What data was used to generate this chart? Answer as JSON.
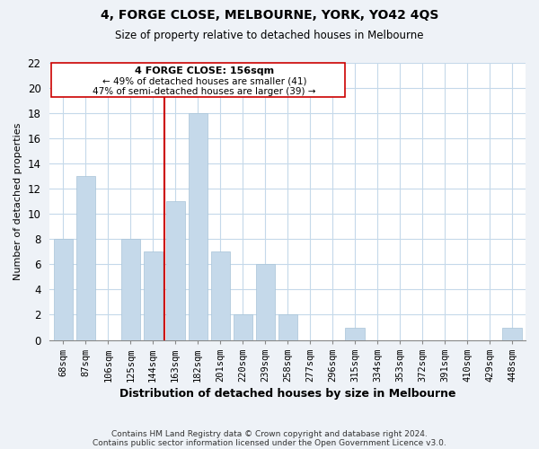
{
  "title": "4, FORGE CLOSE, MELBOURNE, YORK, YO42 4QS",
  "subtitle": "Size of property relative to detached houses in Melbourne",
  "xlabel": "Distribution of detached houses by size in Melbourne",
  "ylabel": "Number of detached properties",
  "bar_color": "#c5d9ea",
  "bar_edge_color": "#a8c4d8",
  "categories": [
    "68sqm",
    "87sqm",
    "106sqm",
    "125sqm",
    "144sqm",
    "163sqm",
    "182sqm",
    "201sqm",
    "220sqm",
    "239sqm",
    "258sqm",
    "277sqm",
    "296sqm",
    "315sqm",
    "334sqm",
    "353sqm",
    "372sqm",
    "391sqm",
    "410sqm",
    "429sqm",
    "448sqm"
  ],
  "values": [
    8,
    13,
    0,
    8,
    7,
    11,
    18,
    7,
    2,
    6,
    2,
    0,
    0,
    1,
    0,
    0,
    0,
    0,
    0,
    0,
    1
  ],
  "vline_index": 5,
  "vline_color": "#cc0000",
  "annotation_title": "4 FORGE CLOSE: 156sqm",
  "annotation_line1": "← 49% of detached houses are smaller (41)",
  "annotation_line2": "47% of semi-detached houses are larger (39) →",
  "ylim": [
    0,
    22
  ],
  "yticks": [
    0,
    2,
    4,
    6,
    8,
    10,
    12,
    14,
    16,
    18,
    20,
    22
  ],
  "footnote1": "Contains HM Land Registry data © Crown copyright and database right 2024.",
  "footnote2": "Contains public sector information licensed under the Open Government Licence v3.0.",
  "bg_color": "#eef2f7",
  "plot_bg_color": "#ffffff",
  "grid_color": "#c5d9ea",
  "ann_box_color": "#cc0000",
  "ann_box_facecolor": "#ffffff"
}
